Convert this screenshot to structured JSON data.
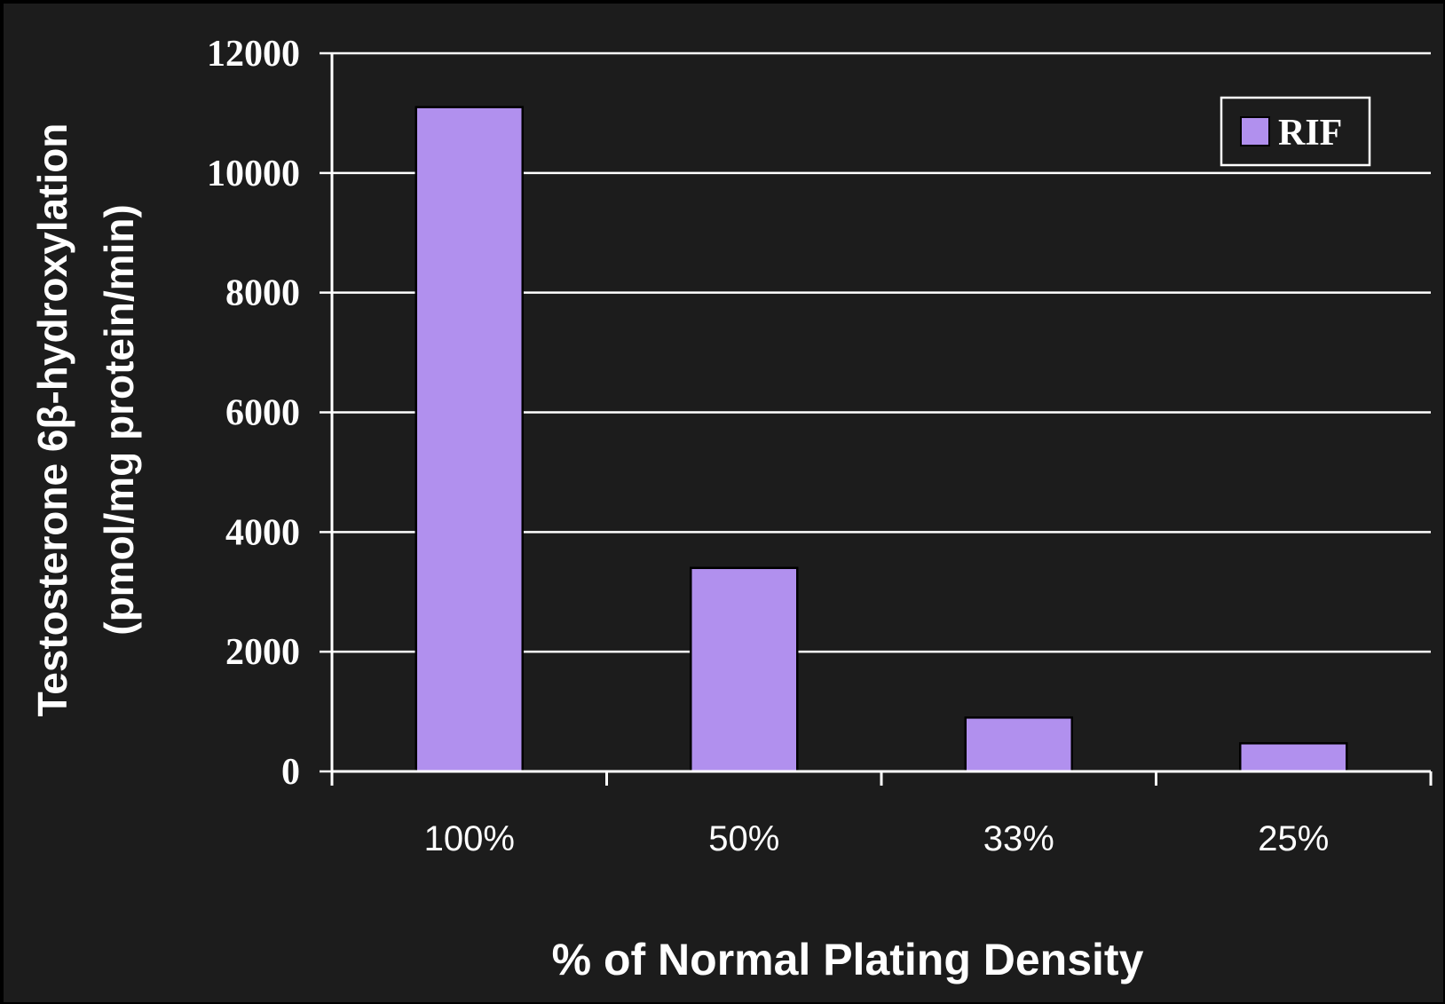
{
  "chart_data": {
    "type": "bar",
    "categories": [
      "100%",
      "50%",
      "33%",
      "25%"
    ],
    "series": [
      {
        "name": "RIF",
        "values": [
          11100,
          3400,
          900,
          470
        ],
        "color": "#b190ee"
      }
    ],
    "ylabel_line1": "Testosterone 6β-hydroxylation",
    "ylabel_line2": "(pmol/mg protein/min)",
    "xlabel": "% of Normal Plating Density",
    "ylim": [
      0,
      12000
    ],
    "yticks": [
      "0",
      "2000",
      "4000",
      "6000",
      "8000",
      "10000",
      "12000"
    ],
    "grid": true,
    "legend_position": "top-right",
    "background_color": "#1c1c1c",
    "text_color": "#ffffff"
  }
}
